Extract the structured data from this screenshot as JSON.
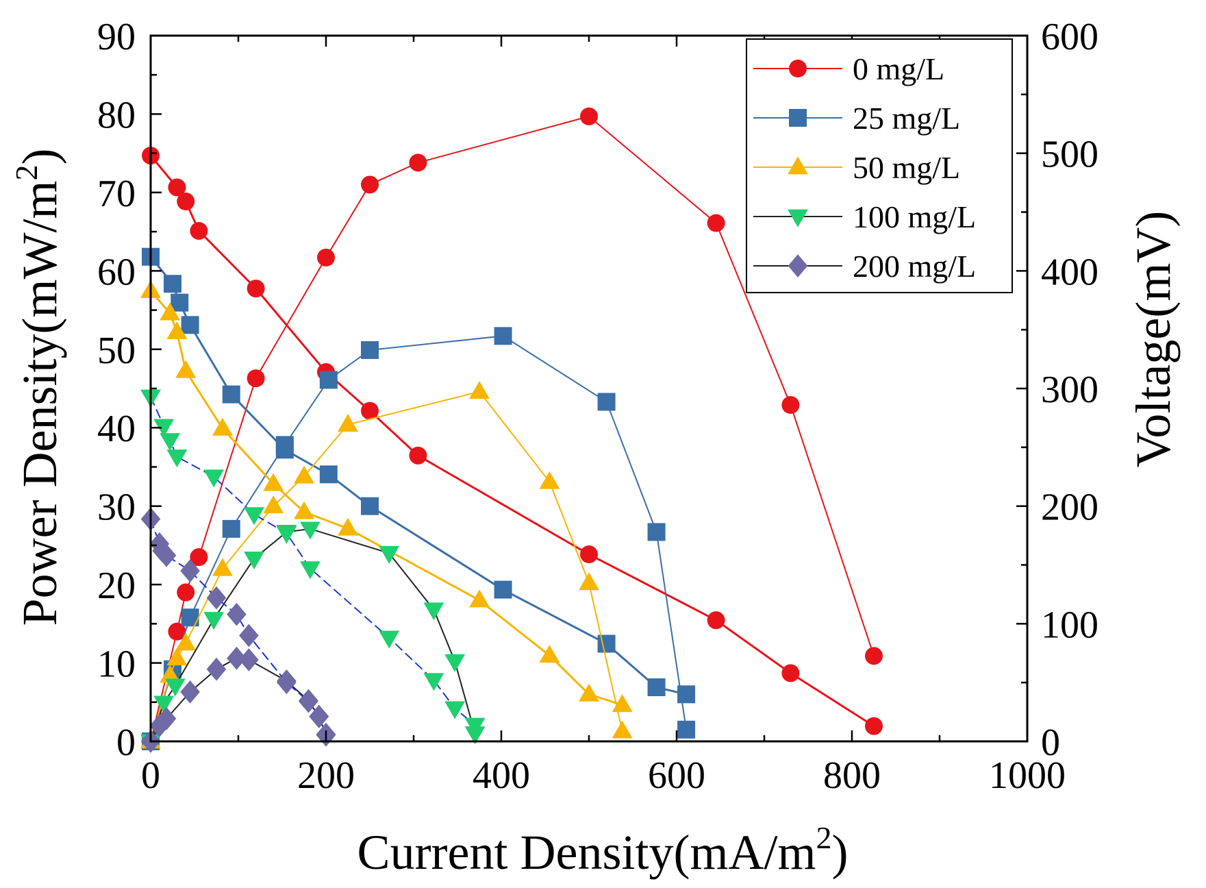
{
  "chart_data": {
    "type": "line",
    "title": "",
    "xlabel": "Current Density(mA/m",
    "xlabel_sup": "2",
    "xlabel_end": ")",
    "ylabel": "Power Density(mW/m",
    "ylabel_sup": "2",
    "ylabel_end": ")",
    "y2label": "Voltage(mV)",
    "xlim": [
      0,
      1000
    ],
    "ylim": [
      0,
      90
    ],
    "y2lim": [
      0,
      600
    ],
    "x_ticks": [
      "0",
      "200",
      "400",
      "600",
      "800",
      "1000"
    ],
    "y_ticks": [
      "0",
      "10",
      "20",
      "30",
      "40",
      "50",
      "60",
      "70",
      "80",
      "90"
    ],
    "y2_ticks": [
      "0",
      "100",
      "200",
      "300",
      "400",
      "500",
      "600"
    ],
    "legend_position": "top-right",
    "series": [
      {
        "name": "0 mg/L",
        "color": "#e8141b",
        "marker": "circle",
        "power": {
          "x": [
            0,
            30,
            40,
            55,
            120,
            200,
            250,
            305,
            500,
            645,
            730,
            825
          ],
          "y": [
            0,
            14,
            19,
            23.5,
            46.3,
            61.7,
            71,
            73.8,
            79.7,
            66.1,
            42.9,
            10.9
          ]
        },
        "voltage": {
          "x": [
            0,
            30,
            40,
            55,
            120,
            200,
            250,
            305,
            500,
            645,
            730,
            825
          ],
          "y": [
            498,
            471,
            459,
            434,
            385,
            314,
            281,
            243,
            159,
            103,
            58,
            13
          ]
        }
      },
      {
        "name": "25 mg/L",
        "color": "#3a6fa8",
        "marker": "square",
        "power": {
          "x": [
            0,
            25,
            45,
            92,
            153,
            203,
            250,
            402,
            520,
            577,
            611
          ],
          "y": [
            0,
            9.2,
            15.8,
            27.1,
            37.8,
            46.1,
            49.9,
            51.7,
            43.3,
            26.7,
            1.5
          ]
        },
        "voltage": {
          "x": [
            0,
            25,
            33,
            45,
            92,
            153,
            203,
            250,
            402,
            520,
            577,
            611
          ],
          "y": [
            412,
            389,
            373,
            354,
            295,
            248,
            227,
            200,
            129,
            83,
            46,
            40
          ]
        }
      },
      {
        "name": "50 mg/L",
        "color": "#f7b500",
        "marker": "triangle-up",
        "power": {
          "x": [
            0,
            22,
            30,
            40,
            82,
            140,
            175,
            225,
            375,
            455,
            500,
            538
          ],
          "y": [
            0,
            8.4,
            10.6,
            12.5,
            22,
            30,
            33.8,
            40.4,
            44.6,
            33.1,
            20.2,
            1.3
          ]
        },
        "voltage": {
          "x": [
            0,
            22,
            30,
            40,
            82,
            140,
            175,
            225,
            375,
            455,
            500,
            538
          ],
          "y": [
            383,
            364,
            348,
            315,
            266,
            219,
            195,
            181,
            120,
            73,
            40,
            31
          ]
        }
      },
      {
        "name": "100 mg/L",
        "color": "#1fcf6e",
        "marker": "triangle-down",
        "power": {
          "x": [
            0,
            15,
            28,
            72,
            118,
            155,
            182,
            272,
            323,
            347,
            370
          ],
          "y": [
            0,
            4.9,
            7.1,
            15.6,
            23.3,
            26.7,
            27.1,
            24,
            16.8,
            10.2,
            1
          ]
        },
        "voltage": {
          "x": [
            0,
            15,
            22,
            30,
            72,
            118,
            155,
            182,
            272,
            323,
            347,
            370
          ],
          "y": [
            293,
            268,
            256,
            242,
            225,
            193,
            177,
            147,
            88,
            52,
            28,
            14
          ]
        }
      },
      {
        "name": "200 mg/L",
        "color": "#6f6aa6",
        "marker": "diamond",
        "power": {
          "x": [
            0,
            10,
            18,
            45,
            75,
            98,
            112,
            155,
            180,
            192,
            200
          ],
          "y": [
            0,
            2,
            2.9,
            6.3,
            9.2,
            10.6,
            10.4,
            7.7,
            5.2,
            3.2,
            0.8
          ]
        },
        "voltage": {
          "x": [
            0,
            10,
            13,
            18,
            45,
            75,
            98,
            112,
            155,
            180,
            192,
            200
          ],
          "y": [
            189,
            168,
            162,
            158,
            145,
            122,
            108,
            90,
            50,
            34,
            21,
            6
          ]
        }
      }
    ]
  }
}
